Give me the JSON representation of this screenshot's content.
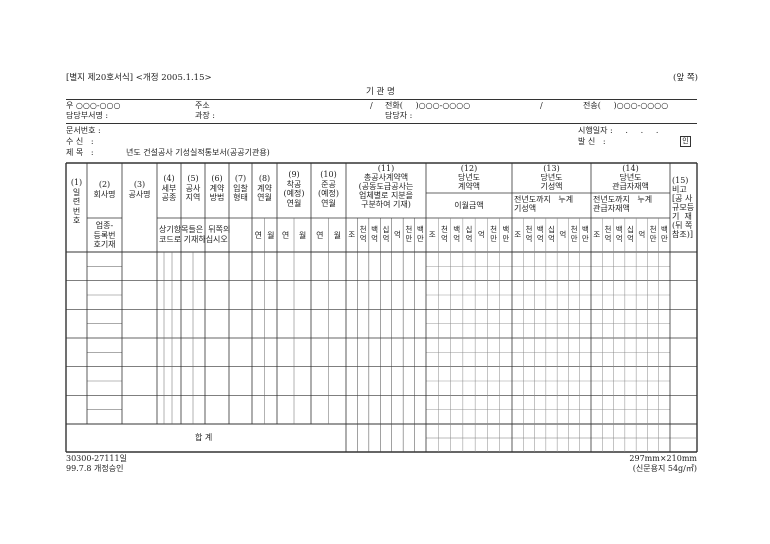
{
  "header": {
    "form_id": "[별지 제20호서식] <개정 2005.1.15>",
    "page_side": "(앞 쪽)",
    "agency_name": "기 관 명"
  },
  "address_block": {
    "postal": "우 ○○○-○○○",
    "address_label": "주소",
    "slash1": "/",
    "phone": "전화(     )○○○-○○○○",
    "slash2": "/",
    "fax": "전송(     )○○○-○○○○",
    "department": "담당부서명 :",
    "manager": "과장 :",
    "person_in_charge": "담당자 :"
  },
  "document_info": {
    "doc_number": "문서번호 :",
    "recipient": "수 신   :",
    "subject_label": "제 목   :",
    "subject": "년도 건설공사 기성실적통보서(공공기관용)",
    "effective_date": "시행일자 :     .     .     .",
    "sender": "발 신   :",
    "seal": "인"
  },
  "table": {
    "columns": {
      "c1": "(1)\n일\n련\n번\n호",
      "c2_top": "(2)\n회사명",
      "c2_bottom": "업종-\n등록번\n호기재",
      "c3": "(3)\n공사명",
      "c4": "(4)\n세부\n공종",
      "c5": "(5)\n공사\n지역",
      "c6": "(6)\n계약\n방법",
      "c7": "(7)\n입찰\n형태",
      "c8": "(8)\n계약\n연월",
      "c9": "(9)\n착공\n(예정)\n연월",
      "c10": "(10)\n준공\n(예정)\n연월",
      "c4_7_note": "상기항목들은  뒤쪽의\n코드로 기재하십시오",
      "c11": "(11)\n총공사계약액\n(공동도급공사는\n업체별로  지분을\n구분하여 기재)",
      "c12_top": "(12)\n당년도\n계약액",
      "c12_sub": "이월금액",
      "c13_top": "(13)\n당년도\n기성액",
      "c13_sub": "전년도까지   누계\n기성액",
      "c14_top": "(14)\n당년도\n관급자재액",
      "c14_sub": "전년도까지   누계\n관급자재액",
      "c15": "(15)\n비고\n[공 사\n규모등\n기  재\n(뒤 쪽\n참조)]"
    },
    "year_label": "연",
    "month_label": "월",
    "digit_units": [
      "조",
      "천\n억",
      "백\n억",
      "십\n억",
      "억",
      "천\n만",
      "백\n만"
    ],
    "total_label": "합 계"
  },
  "footer": {
    "code": "30300-27111일",
    "approval": "99.7.8 개정승인",
    "paper_size": "297mm×210mm",
    "paper_type": "(신문용지 54g/㎡)"
  }
}
